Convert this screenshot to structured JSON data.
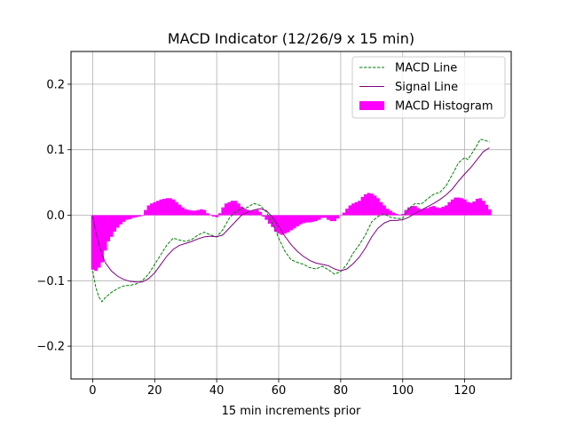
{
  "chart_data": {
    "type": "line",
    "title": "MACD Indicator (12/26/9 x 15 min)",
    "xlabel": "15 min increments prior",
    "ylabel": "",
    "xlim": [
      -7,
      135
    ],
    "ylim": [
      -0.25,
      0.25
    ],
    "grid": true,
    "x_ticks": [
      0,
      20,
      40,
      60,
      80,
      100,
      120
    ],
    "x_tick_labels": [
      "0",
      "20",
      "40",
      "60",
      "80",
      "100",
      "120"
    ],
    "y_ticks": [
      -0.2,
      -0.1,
      0.0,
      0.1,
      0.2
    ],
    "y_tick_labels": [
      "−0.2",
      "−0.1",
      "0.0",
      "0.1",
      "0.2"
    ],
    "legend_position": "top-right",
    "colors": {
      "macd": "#008000",
      "signal": "#800080",
      "histogram": "#ff00ff",
      "grid": "#b0b0b0"
    },
    "series": [
      {
        "name": "MACD Line",
        "style": "dashed",
        "points": [
          [
            0,
            -0.085
          ],
          [
            1,
            -0.11
          ],
          [
            2,
            -0.125
          ],
          [
            3,
            -0.132
          ],
          [
            4,
            -0.126
          ],
          [
            6,
            -0.118
          ],
          [
            8,
            -0.112
          ],
          [
            10,
            -0.108
          ],
          [
            12,
            -0.107
          ],
          [
            14,
            -0.105
          ],
          [
            16,
            -0.1
          ],
          [
            18,
            -0.09
          ],
          [
            20,
            -0.075
          ],
          [
            22,
            -0.06
          ],
          [
            24,
            -0.045
          ],
          [
            26,
            -0.035
          ],
          [
            28,
            -0.038
          ],
          [
            30,
            -0.04
          ],
          [
            32,
            -0.037
          ],
          [
            34,
            -0.03
          ],
          [
            36,
            -0.026
          ],
          [
            38,
            -0.03
          ],
          [
            40,
            -0.033
          ],
          [
            42,
            -0.022
          ],
          [
            44,
            -0.005
          ],
          [
            46,
            0.005
          ],
          [
            48,
            0.01
          ],
          [
            50,
            0.012
          ],
          [
            52,
            0.018
          ],
          [
            54,
            0.015
          ],
          [
            56,
            0.005
          ],
          [
            58,
            -0.012
          ],
          [
            60,
            -0.035
          ],
          [
            62,
            -0.055
          ],
          [
            64,
            -0.068
          ],
          [
            66,
            -0.072
          ],
          [
            68,
            -0.075
          ],
          [
            70,
            -0.08
          ],
          [
            72,
            -0.082
          ],
          [
            74,
            -0.078
          ],
          [
            76,
            -0.083
          ],
          [
            78,
            -0.09
          ],
          [
            80,
            -0.086
          ],
          [
            82,
            -0.075
          ],
          [
            84,
            -0.058
          ],
          [
            86,
            -0.045
          ],
          [
            88,
            -0.03
          ],
          [
            90,
            -0.01
          ],
          [
            92,
            -0.002
          ],
          [
            94,
            0.002
          ],
          [
            96,
            -0.003
          ],
          [
            98,
            -0.005
          ],
          [
            100,
            -0.005
          ],
          [
            102,
            0.01
          ],
          [
            104,
            0.018
          ],
          [
            106,
            0.017
          ],
          [
            108,
            0.025
          ],
          [
            110,
            0.032
          ],
          [
            112,
            0.035
          ],
          [
            114,
            0.045
          ],
          [
            116,
            0.062
          ],
          [
            118,
            0.08
          ],
          [
            120,
            0.088
          ],
          [
            121,
            0.085
          ],
          [
            122,
            0.092
          ],
          [
            124,
            0.107
          ],
          [
            125,
            0.116
          ],
          [
            126,
            0.115
          ],
          [
            128,
            0.112
          ]
        ]
      },
      {
        "name": "Signal Line",
        "style": "solid",
        "points": [
          [
            0,
            -0.002
          ],
          [
            1,
            -0.025
          ],
          [
            2,
            -0.045
          ],
          [
            3,
            -0.06
          ],
          [
            4,
            -0.072
          ],
          [
            6,
            -0.085
          ],
          [
            8,
            -0.093
          ],
          [
            10,
            -0.098
          ],
          [
            12,
            -0.101
          ],
          [
            14,
            -0.102
          ],
          [
            16,
            -0.102
          ],
          [
            18,
            -0.097
          ],
          [
            20,
            -0.088
          ],
          [
            22,
            -0.075
          ],
          [
            24,
            -0.062
          ],
          [
            26,
            -0.052
          ],
          [
            28,
            -0.046
          ],
          [
            30,
            -0.043
          ],
          [
            32,
            -0.04
          ],
          [
            34,
            -0.036
          ],
          [
            36,
            -0.033
          ],
          [
            38,
            -0.032
          ],
          [
            40,
            -0.033
          ],
          [
            42,
            -0.03
          ],
          [
            44,
            -0.02
          ],
          [
            46,
            -0.01
          ],
          [
            48,
            0.0
          ],
          [
            50,
            0.005
          ],
          [
            52,
            0.008
          ],
          [
            54,
            0.01
          ],
          [
            56,
            0.007
          ],
          [
            58,
            -0.003
          ],
          [
            60,
            -0.017
          ],
          [
            62,
            -0.032
          ],
          [
            64,
            -0.045
          ],
          [
            66,
            -0.055
          ],
          [
            68,
            -0.063
          ],
          [
            70,
            -0.069
          ],
          [
            72,
            -0.073
          ],
          [
            74,
            -0.075
          ],
          [
            76,
            -0.077
          ],
          [
            78,
            -0.082
          ],
          [
            80,
            -0.085
          ],
          [
            82,
            -0.082
          ],
          [
            84,
            -0.074
          ],
          [
            86,
            -0.064
          ],
          [
            88,
            -0.05
          ],
          [
            90,
            -0.033
          ],
          [
            92,
            -0.02
          ],
          [
            94,
            -0.012
          ],
          [
            96,
            -0.008
          ],
          [
            98,
            -0.008
          ],
          [
            100,
            -0.007
          ],
          [
            102,
            -0.003
          ],
          [
            104,
            0.003
          ],
          [
            106,
            0.008
          ],
          [
            108,
            0.013
          ],
          [
            110,
            0.018
          ],
          [
            112,
            0.024
          ],
          [
            114,
            0.031
          ],
          [
            116,
            0.04
          ],
          [
            118,
            0.052
          ],
          [
            120,
            0.063
          ],
          [
            122,
            0.073
          ],
          [
            124,
            0.085
          ],
          [
            126,
            0.097
          ],
          [
            128,
            0.103
          ]
        ]
      },
      {
        "name": "MACD Histogram",
        "style": "bar",
        "points": [
          [
            0,
            -0.083
          ],
          [
            1,
            -0.085
          ],
          [
            2,
            -0.08
          ],
          [
            3,
            -0.072
          ],
          [
            4,
            -0.054
          ],
          [
            5,
            -0.04
          ],
          [
            6,
            -0.033
          ],
          [
            7,
            -0.025
          ],
          [
            8,
            -0.019
          ],
          [
            9,
            -0.014
          ],
          [
            10,
            -0.01
          ],
          [
            11,
            -0.007
          ],
          [
            12,
            -0.006
          ],
          [
            13,
            -0.004
          ],
          [
            14,
            -0.003
          ],
          [
            15,
            -0.002
          ],
          [
            16,
            -0.001
          ],
          [
            17,
            0.008
          ],
          [
            18,
            0.015
          ],
          [
            19,
            0.018
          ],
          [
            20,
            0.02
          ],
          [
            21,
            0.022
          ],
          [
            22,
            0.024
          ],
          [
            23,
            0.025
          ],
          [
            24,
            0.026
          ],
          [
            25,
            0.026
          ],
          [
            26,
            0.024
          ],
          [
            27,
            0.02
          ],
          [
            28,
            0.016
          ],
          [
            29,
            0.012
          ],
          [
            30,
            0.009
          ],
          [
            31,
            0.008
          ],
          [
            32,
            0.007
          ],
          [
            33,
            0.007
          ],
          [
            34,
            0.008
          ],
          [
            35,
            0.009
          ],
          [
            36,
            0.008
          ],
          [
            37,
            0.003
          ],
          [
            38,
            0.001
          ],
          [
            39,
            -0.002
          ],
          [
            40,
            -0.003
          ],
          [
            41,
            0.003
          ],
          [
            42,
            0.012
          ],
          [
            43,
            0.018
          ],
          [
            44,
            0.02
          ],
          [
            45,
            0.022
          ],
          [
            46,
            0.022
          ],
          [
            47,
            0.018
          ],
          [
            48,
            0.013
          ],
          [
            49,
            0.01
          ],
          [
            50,
            0.008
          ],
          [
            51,
            0.006
          ],
          [
            52,
            0.007
          ],
          [
            53,
            0.008
          ],
          [
            54,
            0.005
          ],
          [
            55,
            -0.002
          ],
          [
            56,
            -0.007
          ],
          [
            57,
            -0.013
          ],
          [
            58,
            -0.018
          ],
          [
            59,
            -0.025
          ],
          [
            60,
            -0.028
          ],
          [
            61,
            -0.03
          ],
          [
            62,
            -0.028
          ],
          [
            63,
            -0.026
          ],
          [
            64,
            -0.023
          ],
          [
            65,
            -0.02
          ],
          [
            66,
            -0.017
          ],
          [
            67,
            -0.014
          ],
          [
            68,
            -0.012
          ],
          [
            69,
            -0.011
          ],
          [
            70,
            -0.011
          ],
          [
            71,
            -0.01
          ],
          [
            72,
            -0.009
          ],
          [
            73,
            -0.007
          ],
          [
            74,
            -0.004
          ],
          [
            75,
            -0.004
          ],
          [
            76,
            -0.007
          ],
          [
            77,
            -0.009
          ],
          [
            78,
            -0.009
          ],
          [
            79,
            -0.005
          ],
          [
            80,
            0.0
          ],
          [
            81,
            0.004
          ],
          [
            82,
            0.01
          ],
          [
            83,
            0.015
          ],
          [
            84,
            0.018
          ],
          [
            85,
            0.02
          ],
          [
            86,
            0.022
          ],
          [
            87,
            0.028
          ],
          [
            88,
            0.032
          ],
          [
            89,
            0.034
          ],
          [
            90,
            0.033
          ],
          [
            91,
            0.03
          ],
          [
            92,
            0.026
          ],
          [
            93,
            0.02
          ],
          [
            94,
            0.015
          ],
          [
            95,
            0.01
          ],
          [
            96,
            0.007
          ],
          [
            97,
            0.004
          ],
          [
            98,
            0.002
          ],
          [
            99,
            0.001
          ],
          [
            100,
            0.002
          ],
          [
            101,
            0.008
          ],
          [
            102,
            0.012
          ],
          [
            103,
            0.014
          ],
          [
            104,
            0.014
          ],
          [
            105,
            0.011
          ],
          [
            106,
            0.009
          ],
          [
            107,
            0.01
          ],
          [
            108,
            0.011
          ],
          [
            109,
            0.013
          ],
          [
            110,
            0.014
          ],
          [
            111,
            0.012
          ],
          [
            112,
            0.011
          ],
          [
            113,
            0.013
          ],
          [
            114,
            0.015
          ],
          [
            115,
            0.02
          ],
          [
            116,
            0.024
          ],
          [
            117,
            0.027
          ],
          [
            118,
            0.027
          ],
          [
            119,
            0.026
          ],
          [
            120,
            0.024
          ],
          [
            121,
            0.02
          ],
          [
            122,
            0.019
          ],
          [
            123,
            0.021
          ],
          [
            124,
            0.025
          ],
          [
            125,
            0.026
          ],
          [
            126,
            0.022
          ],
          [
            127,
            0.016
          ],
          [
            128,
            0.009
          ]
        ]
      }
    ]
  }
}
